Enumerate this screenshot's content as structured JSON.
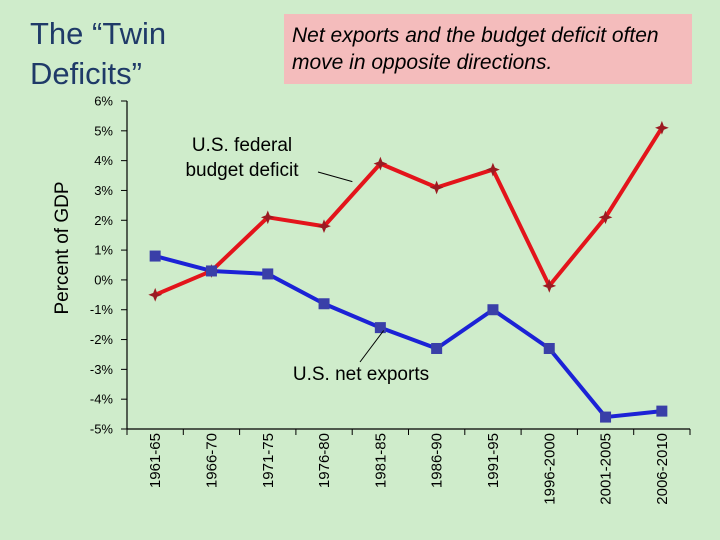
{
  "slide": {
    "title_line1": "The “Twin",
    "title_line2": "Deficits”",
    "note": "Net exports and the budget deficit often move in opposite directions."
  },
  "chart_data": {
    "type": "line",
    "ylabel": "Percent of GDP",
    "ylim": [
      -5,
      6
    ],
    "yticks": [
      "6%",
      "5%",
      "4%",
      "3%",
      "2%",
      "1%",
      "0%",
      "-1%",
      "-2%",
      "-3%",
      "-4%",
      "-5%"
    ],
    "grid": false,
    "categories": [
      "1961-65",
      "1966-70",
      "1971-75",
      "1976-80",
      "1981-85",
      "1986-90",
      "1991-95",
      "1996-2000",
      "2001-2005",
      "2006-2010"
    ],
    "series": [
      {
        "name": "U.S. federal budget deficit",
        "color": "#e3141b",
        "marker": "star",
        "values": [
          -0.5,
          0.3,
          2.1,
          1.8,
          3.9,
          3.1,
          3.7,
          -0.2,
          2.1,
          5.1
        ]
      },
      {
        "name": "U.S. net exports",
        "color": "#1c22d6",
        "marker": "square",
        "values": [
          0.8,
          0.3,
          0.2,
          -0.8,
          -1.6,
          -2.3,
          -1.0,
          -2.3,
          -4.6,
          -4.4
        ]
      }
    ],
    "annotations": [
      {
        "line1": "U.S. federal",
        "line2": "budget deficit",
        "series": 0,
        "point": 4
      },
      {
        "line1": "U.S. net exports",
        "series": 1,
        "point": 5
      }
    ]
  }
}
